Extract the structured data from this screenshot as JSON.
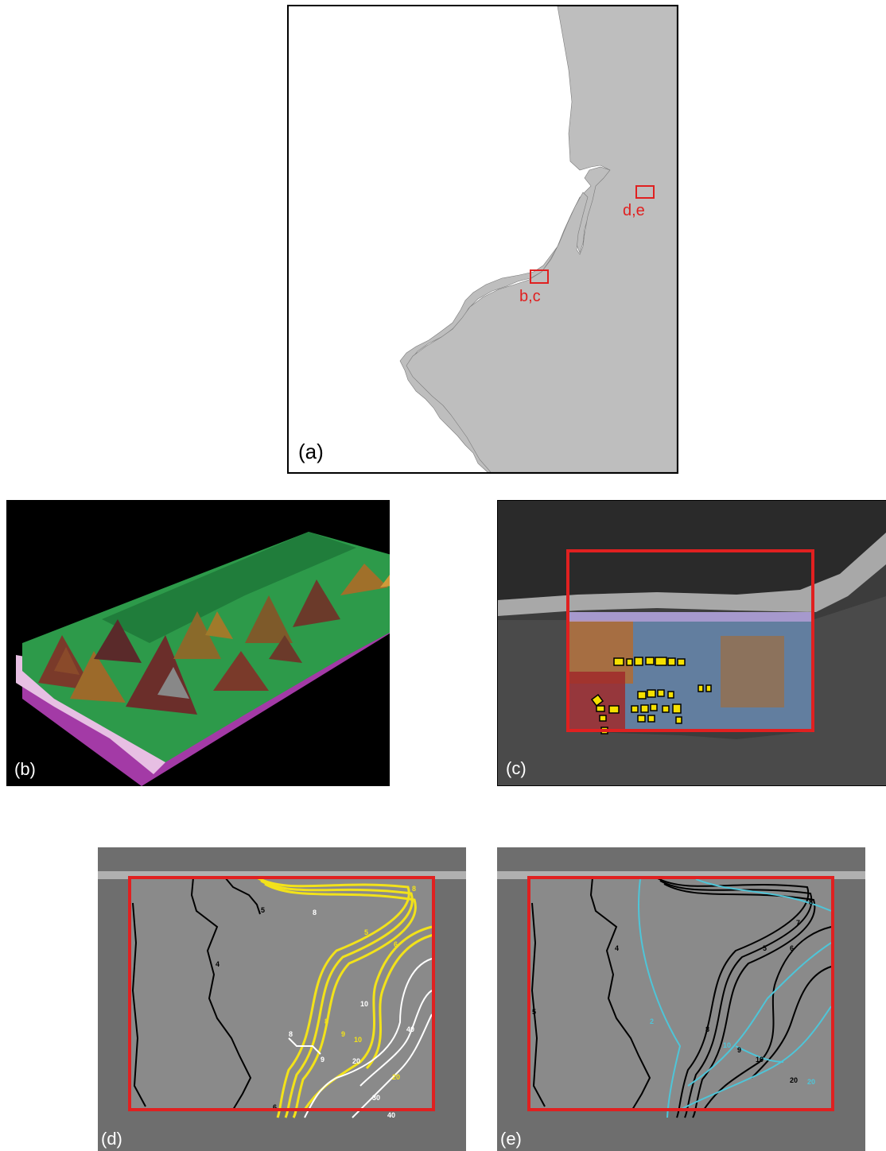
{
  "panels": {
    "a": {
      "label": "(a)",
      "sites": [
        {
          "label": "d,e"
        },
        {
          "label": "b,c"
        }
      ]
    },
    "b": {
      "label": "(b)"
    },
    "c": {
      "label": "(c)"
    },
    "d": {
      "label": "(d)",
      "contour_labels_black": [
        "5",
        "4",
        "6"
      ],
      "contour_labels_yellow": [
        "8",
        "5",
        "6",
        "8",
        "9",
        "10",
        "20"
      ],
      "contour_labels_white": [
        "8",
        "10",
        "8",
        "9",
        "20",
        "40",
        "30",
        "40"
      ]
    },
    "e": {
      "label": "(e)",
      "contour_labels_black": [
        "4",
        "5",
        "8",
        "7",
        "6",
        "5",
        "8",
        "9",
        "10",
        "20"
      ],
      "contour_labels_cyan": [
        "2",
        "10",
        "20"
      ]
    }
  },
  "colors": {
    "land": "#bebebe",
    "outline_red": "#e02020",
    "building_yellow": "#f5e000",
    "contour_yellow": "#f2e21a",
    "contour_cyan": "#4ec5d8",
    "contour_black": "#000000",
    "contour_white": "#ffffff"
  }
}
